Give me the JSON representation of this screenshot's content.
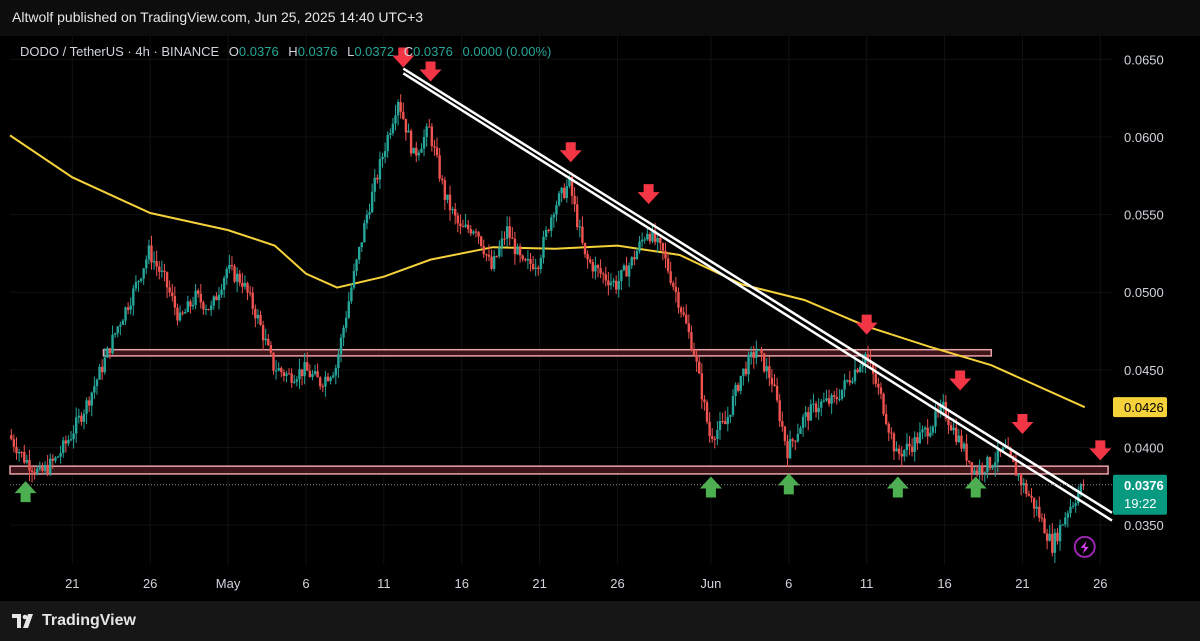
{
  "header": {
    "published_text": "Altwolf published on TradingView.com, Jun 25, 2025 14:40 UTC+3"
  },
  "legend": {
    "symbol": "DODO / TetherUS · 4h · BINANCE",
    "o_label": "O",
    "o_value": "0.0376",
    "h_label": "H",
    "h_value": "0.0376",
    "l_label": "L",
    "l_value": "0.0372",
    "c_label": "C",
    "c_value": "0.0376",
    "change": "0.0000 (0.00%)"
  },
  "footer": {
    "brand": "TradingView",
    "logo_icon": "tradingview-logo-icon"
  },
  "colors": {
    "up": "#26a69a",
    "down": "#ef5350",
    "ma": "#f5d13a",
    "arrow_down": "#f23645",
    "arrow_up": "#4caf50",
    "zone_fill": "#3d1518",
    "zone_border": "#e8a3a8",
    "trendline": "#ffffff"
  },
  "chart_data": {
    "type": "candlestick",
    "title": "",
    "xlabel": "",
    "ylabel": "",
    "ylim": [
      0.0325,
      0.0665
    ],
    "xlim": [
      "2025-04-17",
      "2025-06-26 18:00"
    ],
    "y_ticks": [
      "0.0650",
      "0.0600",
      "0.0550",
      "0.0500",
      "0.0450",
      "0.0400",
      "0.0350"
    ],
    "x_ticks": [
      {
        "date": "2025-04-21",
        "label": "21"
      },
      {
        "date": "2025-04-26",
        "label": "26"
      },
      {
        "date": "2025-05-01",
        "label": "May"
      },
      {
        "date": "2025-05-06",
        "label": "6"
      },
      {
        "date": "2025-05-11",
        "label": "11"
      },
      {
        "date": "2025-05-16",
        "label": "16"
      },
      {
        "date": "2025-05-21",
        "label": "21"
      },
      {
        "date": "2025-05-26",
        "label": "26"
      },
      {
        "date": "2025-06-01",
        "label": "Jun"
      },
      {
        "date": "2025-06-06",
        "label": "6"
      },
      {
        "date": "2025-06-11",
        "label": "11"
      },
      {
        "date": "2025-06-16",
        "label": "16"
      },
      {
        "date": "2025-06-21",
        "label": "21"
      },
      {
        "date": "2025-06-26",
        "label": "26"
      }
    ],
    "price_path": [
      [
        "2025-04-17",
        0.0408
      ],
      [
        "2025-04-18",
        0.0393
      ],
      [
        "2025-04-19",
        0.0383
      ],
      [
        "2025-04-20",
        0.0392
      ],
      [
        "2025-04-21",
        0.0408
      ],
      [
        "2025-04-22",
        0.0428
      ],
      [
        "2025-04-23",
        0.0452
      ],
      [
        "2025-04-24",
        0.0478
      ],
      [
        "2025-04-25",
        0.05
      ],
      [
        "2025-04-26",
        0.0526
      ],
      [
        "2025-04-27",
        0.0508
      ],
      [
        "2025-04-28",
        0.0482
      ],
      [
        "2025-04-29",
        0.0497
      ],
      [
        "2025-04-30",
        0.0489
      ],
      [
        "2025-05-01",
        0.0515
      ],
      [
        "2025-05-02",
        0.0507
      ],
      [
        "2025-05-03",
        0.0483
      ],
      [
        "2025-05-04",
        0.0452
      ],
      [
        "2025-05-05",
        0.0446
      ],
      [
        "2025-05-06",
        0.045
      ],
      [
        "2025-05-07",
        0.0442
      ],
      [
        "2025-05-08",
        0.0452
      ],
      [
        "2025-05-09",
        0.0503
      ],
      [
        "2025-05-10",
        0.055
      ],
      [
        "2025-05-11",
        0.0588
      ],
      [
        "2025-05-12",
        0.0625
      ],
      [
        "2025-05-13",
        0.0588
      ],
      [
        "2025-05-14",
        0.0605
      ],
      [
        "2025-05-15",
        0.0562
      ],
      [
        "2025-05-16",
        0.054
      ],
      [
        "2025-05-17",
        0.0542
      ],
      [
        "2025-05-18",
        0.0515
      ],
      [
        "2025-05-19",
        0.054
      ],
      [
        "2025-05-20",
        0.0517
      ],
      [
        "2025-05-21",
        0.052
      ],
      [
        "2025-05-22",
        0.0555
      ],
      [
        "2025-05-23",
        0.057
      ],
      [
        "2025-05-24",
        0.0522
      ],
      [
        "2025-05-25",
        0.0512
      ],
      [
        "2025-05-26",
        0.0505
      ],
      [
        "2025-05-27",
        0.052
      ],
      [
        "2025-05-28",
        0.054
      ],
      [
        "2025-05-29",
        0.0525
      ],
      [
        "2025-05-30",
        0.0495
      ],
      [
        "2025-05-31",
        0.0462
      ],
      [
        "2025-06-01",
        0.0408
      ],
      [
        "2025-06-02",
        0.0415
      ],
      [
        "2025-06-03",
        0.0446
      ],
      [
        "2025-06-04",
        0.0463
      ],
      [
        "2025-06-05",
        0.0443
      ],
      [
        "2025-06-06",
        0.0398
      ],
      [
        "2025-06-07",
        0.0418
      ],
      [
        "2025-06-08",
        0.0428
      ],
      [
        "2025-06-09",
        0.043
      ],
      [
        "2025-06-10",
        0.0445
      ],
      [
        "2025-06-11",
        0.046
      ],
      [
        "2025-06-12",
        0.0432
      ],
      [
        "2025-06-13",
        0.0395
      ],
      [
        "2025-06-14",
        0.0402
      ],
      [
        "2025-06-15",
        0.0412
      ],
      [
        "2025-06-16",
        0.0425
      ],
      [
        "2025-06-17",
        0.0405
      ],
      [
        "2025-06-18",
        0.0385
      ],
      [
        "2025-06-19",
        0.039
      ],
      [
        "2025-06-20",
        0.0398
      ],
      [
        "2025-06-21",
        0.0378
      ],
      [
        "2025-06-22",
        0.036
      ],
      [
        "2025-06-23",
        0.0337
      ],
      [
        "2025-06-24",
        0.036
      ],
      [
        "2025-06-25",
        0.0376
      ]
    ],
    "moving_average": [
      [
        "2025-04-17",
        0.0601
      ],
      [
        "2025-04-21",
        0.0574
      ],
      [
        "2025-04-26",
        0.0551
      ],
      [
        "2025-05-01",
        0.054
      ],
      [
        "2025-05-04",
        0.053
      ],
      [
        "2025-05-06",
        0.0512
      ],
      [
        "2025-05-08",
        0.0503
      ],
      [
        "2025-05-11",
        0.051
      ],
      [
        "2025-05-14",
        0.0521
      ],
      [
        "2025-05-18",
        0.0529
      ],
      [
        "2025-05-22",
        0.0528
      ],
      [
        "2025-05-26",
        0.053
      ],
      [
        "2025-05-30",
        0.0524
      ],
      [
        "2025-06-03",
        0.0505
      ],
      [
        "2025-06-07",
        0.0495
      ],
      [
        "2025-06-11",
        0.0478
      ],
      [
        "2025-06-15",
        0.0465
      ],
      [
        "2025-06-19",
        0.0453
      ],
      [
        "2025-06-23",
        0.0435
      ],
      [
        "2025-06-25",
        0.0426
      ]
    ],
    "horizontal_zones": [
      {
        "name": "resistance-zone",
        "y_top": 0.0463,
        "y_bottom": 0.0459,
        "x_start": "2025-04-23",
        "x_end": "2025-06-19"
      },
      {
        "name": "support-zone",
        "y_top": 0.0388,
        "y_bottom": 0.0383,
        "x_start": "2025-04-17",
        "x_end": "2025-06-26 12:00"
      }
    ],
    "trendlines": [
      {
        "from": [
          "2025-05-12 06:00",
          0.0644
        ],
        "to": [
          "2025-06-26 18:00",
          0.0358
        ]
      },
      {
        "from": [
          "2025-05-12 06:00",
          0.0641
        ],
        "to": [
          "2025-06-26 18:00",
          0.0353
        ]
      }
    ],
    "down_arrows": [
      [
        "2025-05-12 06:00",
        0.0646
      ],
      [
        "2025-05-14",
        0.0637
      ],
      [
        "2025-05-23",
        0.0585
      ],
      [
        "2025-05-28",
        0.0558
      ],
      [
        "2025-06-11",
        0.0474
      ],
      [
        "2025-06-17",
        0.0438
      ],
      [
        "2025-06-21",
        0.041
      ],
      [
        "2025-06-26",
        0.0393
      ]
    ],
    "up_arrows": [
      [
        "2025-04-18",
        0.0379
      ],
      [
        "2025-06-01",
        0.0382
      ],
      [
        "2025-06-06",
        0.0384
      ],
      [
        "2025-06-13",
        0.0382
      ],
      [
        "2025-06-18",
        0.0382
      ]
    ],
    "last_price": {
      "value": "0.0376",
      "countdown": "19:22"
    },
    "ma_value_label": "0.0426"
  }
}
